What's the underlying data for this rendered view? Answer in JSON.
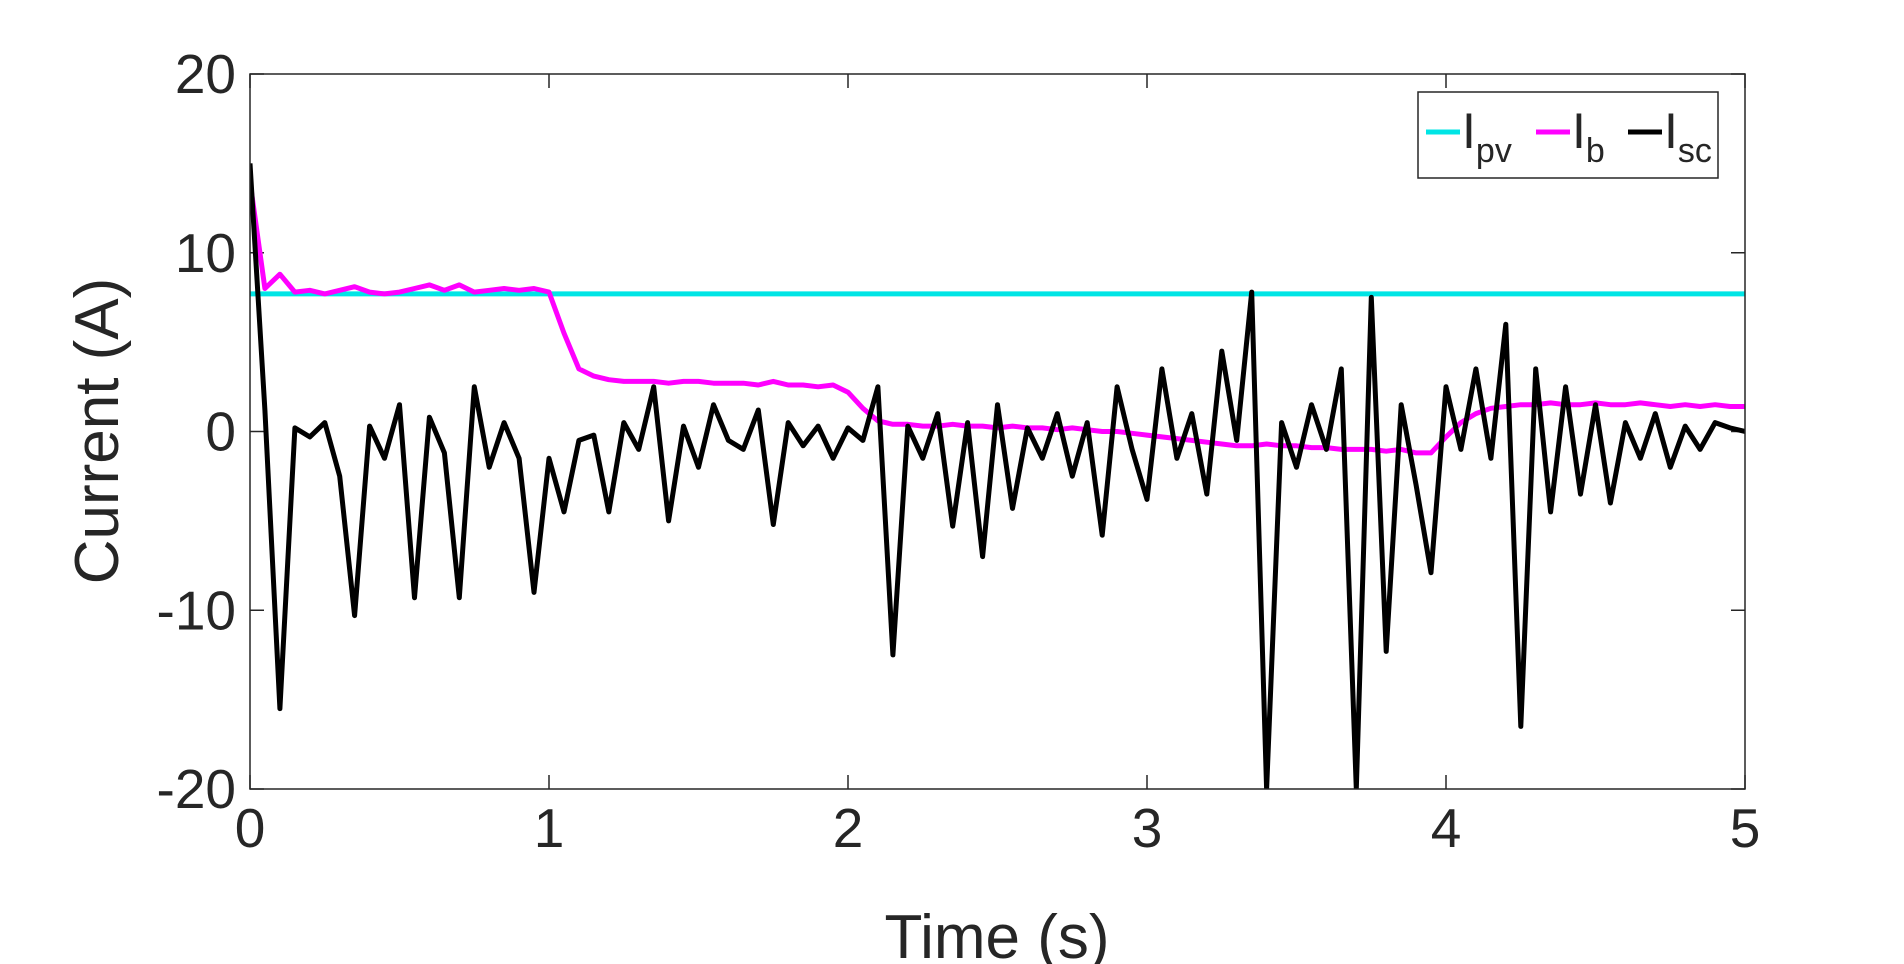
{
  "chart_data": {
    "type": "line",
    "xlabel": "Time (s)",
    "ylabel": "Current (A)",
    "x": [
      0,
      0.05,
      0.1,
      0.15,
      0.2,
      0.25,
      0.3,
      0.35,
      0.4,
      0.45,
      0.5,
      0.55,
      0.6,
      0.65,
      0.7,
      0.75,
      0.8,
      0.85,
      0.9,
      0.95,
      1,
      1.05,
      1.1,
      1.15,
      1.2,
      1.25,
      1.3,
      1.35,
      1.4,
      1.45,
      1.5,
      1.55,
      1.6,
      1.65,
      1.7,
      1.75,
      1.8,
      1.85,
      1.9,
      1.95,
      2,
      2.05,
      2.1,
      2.15,
      2.2,
      2.25,
      2.3,
      2.35,
      2.4,
      2.45,
      2.5,
      2.55,
      2.6,
      2.65,
      2.7,
      2.75,
      2.8,
      2.85,
      2.9,
      2.95,
      3,
      3.05,
      3.1,
      3.15,
      3.2,
      3.25,
      3.3,
      3.35,
      3.4,
      3.45,
      3.5,
      3.55,
      3.6,
      3.65,
      3.7,
      3.75,
      3.8,
      3.85,
      3.9,
      3.95,
      4,
      4.05,
      4.1,
      4.15,
      4.2,
      4.25,
      4.3,
      4.35,
      4.4,
      4.45,
      4.5,
      4.55,
      4.6,
      4.65,
      4.7,
      4.75,
      4.8,
      4.85,
      4.9,
      4.95,
      5
    ],
    "series": [
      {
        "name": "Ipv",
        "color": "#00e5e5",
        "values": [
          7.7,
          7.7,
          7.7,
          7.7,
          7.7,
          7.7,
          7.7,
          7.7,
          7.7,
          7.7,
          7.7,
          7.7,
          7.7,
          7.7,
          7.7,
          7.7,
          7.7,
          7.7,
          7.7,
          7.7,
          7.7,
          7.7,
          7.7,
          7.7,
          7.7,
          7.7,
          7.7,
          7.7,
          7.7,
          7.7,
          7.7,
          7.7,
          7.7,
          7.7,
          7.7,
          7.7,
          7.7,
          7.7,
          7.7,
          7.7,
          7.7,
          7.7,
          7.7,
          7.7,
          7.7,
          7.7,
          7.7,
          7.7,
          7.7,
          7.7,
          7.7,
          7.7,
          7.7,
          7.7,
          7.7,
          7.7,
          7.7,
          7.7,
          7.7,
          7.7,
          7.7,
          7.7,
          7.7,
          7.7,
          7.7,
          7.7,
          7.7,
          7.7,
          7.7,
          7.7,
          7.7,
          7.7,
          7.7,
          7.7,
          7.7,
          7.7,
          7.7,
          7.7,
          7.7,
          7.7,
          7.7,
          7.7,
          7.7,
          7.7,
          7.7,
          7.7,
          7.7,
          7.7,
          7.7,
          7.7,
          7.7,
          7.7,
          7.7,
          7.7,
          7.7,
          7.7,
          7.7,
          7.7,
          7.7,
          7.7,
          7.7
        ]
      },
      {
        "name": "Ib",
        "color": "#ff00ff",
        "values": [
          14,
          8.0,
          8.8,
          7.8,
          7.9,
          7.7,
          7.9,
          8.1,
          7.8,
          7.7,
          7.8,
          8.0,
          8.2,
          7.9,
          8.2,
          7.8,
          7.9,
          8.0,
          7.9,
          8.0,
          7.8,
          5.5,
          3.5,
          3.1,
          2.9,
          2.8,
          2.8,
          2.8,
          2.7,
          2.8,
          2.8,
          2.7,
          2.7,
          2.7,
          2.6,
          2.8,
          2.6,
          2.6,
          2.5,
          2.6,
          2.2,
          1.3,
          0.6,
          0.4,
          0.4,
          0.3,
          0.3,
          0.4,
          0.3,
          0.3,
          0.2,
          0.3,
          0.2,
          0.2,
          0.1,
          0.2,
          0.1,
          0.0,
          0.0,
          -0.1,
          -0.2,
          -0.3,
          -0.4,
          -0.5,
          -0.6,
          -0.7,
          -0.8,
          -0.8,
          -0.7,
          -0.8,
          -0.8,
          -0.9,
          -0.9,
          -1.0,
          -1.0,
          -1.0,
          -1.1,
          -1.0,
          -1.2,
          -1.2,
          -0.3,
          0.5,
          1.0,
          1.3,
          1.4,
          1.5,
          1.5,
          1.6,
          1.5,
          1.5,
          1.6,
          1.5,
          1.5,
          1.6,
          1.5,
          1.4,
          1.5,
          1.4,
          1.5,
          1.4,
          1.4
        ]
      },
      {
        "name": "Isc",
        "color": "#000000",
        "values": [
          15,
          1.2,
          -15.5,
          0.2,
          -0.3,
          0.5,
          -2.5,
          -10.3,
          0.3,
          -1.5,
          1.5,
          -9.3,
          0.8,
          -1.2,
          -9.3,
          2.5,
          -2.0,
          0.5,
          -1.5,
          -9.0,
          -1.5,
          -4.5,
          -0.5,
          -0.2,
          -4.5,
          0.5,
          -1.0,
          2.5,
          -5.0,
          0.3,
          -2.0,
          1.5,
          -0.5,
          -1.0,
          1.2,
          -5.2,
          0.5,
          -0.8,
          0.3,
          -1.5,
          0.2,
          -0.5,
          2.5,
          -12.5,
          0.3,
          -1.5,
          1.0,
          -5.3,
          0.5,
          -7.0,
          1.5,
          -4.3,
          0.2,
          -1.5,
          1.0,
          -2.5,
          0.5,
          -5.8,
          2.5,
          -1.0,
          -3.8,
          3.5,
          -1.5,
          1.0,
          -3.5,
          4.5,
          -0.5,
          7.8,
          -20,
          0.5,
          -2.0,
          1.5,
          -1.0,
          3.5,
          -20,
          7.5,
          -12.3,
          1.5,
          -3.0,
          -7.9,
          2.5,
          -1.0,
          3.5,
          -1.5,
          6.0,
          -16.5,
          3.5,
          -4.5,
          2.5,
          -3.5,
          1.5,
          -4.0,
          0.5,
          -1.5,
          1.0,
          -2.0,
          0.3,
          -1.0,
          0.5,
          0.2,
          0.0
        ]
      }
    ],
    "xlim": [
      0,
      5
    ],
    "xticks": [
      0,
      1,
      2,
      3,
      4,
      5
    ],
    "ylim": [
      -20,
      20
    ],
    "yticks": [
      -20,
      -10,
      0,
      10,
      20
    ],
    "grid": false,
    "legend": "upper right"
  }
}
